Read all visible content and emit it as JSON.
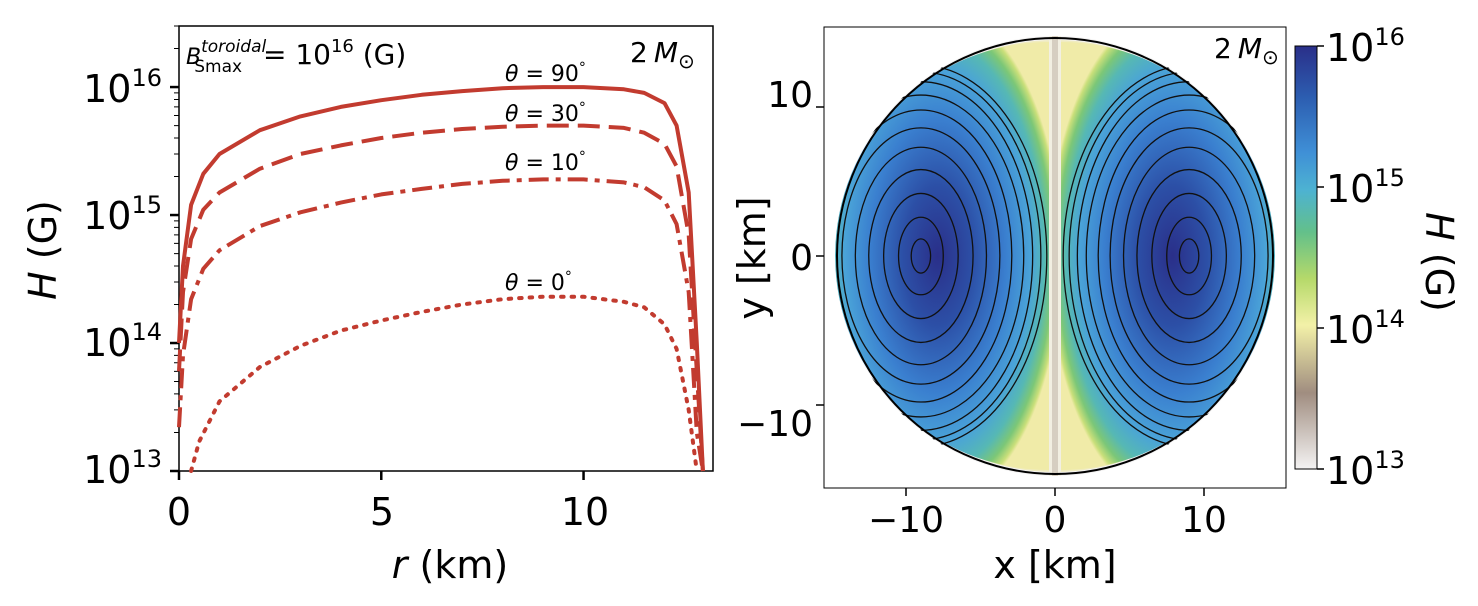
{
  "chart_data": [
    {
      "type": "line",
      "panel": "left",
      "xlabel": "r (km)",
      "xlabel_var": "r",
      "xlabel_unit": "(km)",
      "ylabel": "H (G)",
      "ylabel_var": "H",
      "ylabel_unit": "(G)",
      "xlim": [
        0,
        13.2
      ],
      "ylim": [
        10000000000000.0,
        3e+16
      ],
      "yscale": "log",
      "x_ticks": [
        "0",
        "5",
        "10"
      ],
      "x_tick_values": [
        0,
        5,
        10
      ],
      "y_ticks": [
        {
          "value": 1e+16,
          "base": "10",
          "exp": "16"
        },
        {
          "value": 1000000000000000.0,
          "base": "10",
          "exp": "15"
        },
        {
          "value": 100000000000000.0,
          "base": "10",
          "exp": "14"
        },
        {
          "value": 10000000000000.0,
          "base": "10",
          "exp": "13"
        }
      ],
      "annotation_bfield": {
        "B": "B",
        "sup": "toroidal",
        "sub": "Smax",
        "eq": " = 10",
        "exp": "16",
        "unit": " (G)"
      },
      "annotation_mass": {
        "prefix": "2",
        "M": "M",
        "sym": "⊙"
      },
      "color": "#c23b2f",
      "series": [
        {
          "name": "θ = 90°",
          "label_theta": "θ",
          "label_eq": " = 90",
          "label_deg": "°",
          "style": "solid",
          "x": [
            0,
            0.1,
            0.3,
            0.6,
            1,
            2,
            3,
            4,
            5,
            6,
            7,
            8,
            9,
            10,
            11,
            11.5,
            12,
            12.3,
            12.6,
            12.8,
            12.95
          ],
          "y": [
            100000000000000.0,
            400000000000000.0,
            1200000000000000.0,
            2100000000000000.0,
            3000000000000000.0,
            4600000000000000.0,
            5900000000000000.0,
            7000000000000000.0,
            7900000000000000.0,
            8700000000000000.0,
            9300000000000000.0,
            9800000000000000.0,
            1e+16,
            1e+16,
            9600000000000000.0,
            9000000000000000.0,
            7500000000000000.0,
            5000000000000000.0,
            1500000000000000.0,
            100000000000000.0,
            10000000000000.0
          ]
        },
        {
          "name": "θ = 30°",
          "label_theta": "θ",
          "label_eq": " = 30",
          "label_deg": "°",
          "style": "dashed",
          "x": [
            0,
            0.1,
            0.3,
            0.6,
            1,
            2,
            3,
            4,
            5,
            6,
            7,
            8,
            9,
            10,
            11,
            11.5,
            12,
            12.3,
            12.6,
            12.8,
            12.95
          ],
          "y": [
            60000000000000.0,
            250000000000000.0,
            650000000000000.0,
            1100000000000000.0,
            1500000000000000.0,
            2300000000000000.0,
            3000000000000000.0,
            3500000000000000.0,
            4000000000000000.0,
            4400000000000000.0,
            4700000000000000.0,
            4900000000000000.0,
            5000000000000000.0,
            5000000000000000.0,
            4800000000000000.0,
            4400000000000000.0,
            3600000000000000.0,
            2400000000000000.0,
            700000000000000.0,
            60000000000000.0,
            10000000000000.0
          ]
        },
        {
          "name": "θ = 10°",
          "label_theta": "θ",
          "label_eq": " = 10",
          "label_deg": "°",
          "style": "dashdot",
          "x": [
            0,
            0.1,
            0.3,
            0.6,
            1,
            2,
            3,
            4,
            5,
            6,
            7,
            8,
            9,
            10,
            11,
            11.5,
            12,
            12.3,
            12.6,
            12.8,
            12.95
          ],
          "y": [
            22000000000000.0,
            80000000000000.0,
            220000000000000.0,
            380000000000000.0,
            530000000000000.0,
            820000000000000.0,
            1050000000000000.0,
            1250000000000000.0,
            1450000000000000.0,
            1600000000000000.0,
            1750000000000000.0,
            1850000000000000.0,
            1900000000000000.0,
            1900000000000000.0,
            1800000000000000.0,
            1650000000000000.0,
            1300000000000000.0,
            850000000000000.0,
            250000000000000.0,
            20000000000000.0,
            10000000000000.0
          ]
        },
        {
          "name": "θ = 0°",
          "label_theta": "θ",
          "label_eq": " = 0",
          "label_deg": "°",
          "style": "dotted",
          "x": [
            0.3,
            0.5,
            1,
            2,
            3,
            4,
            5,
            6,
            7,
            8,
            9,
            10,
            11,
            11.5,
            12,
            12.3,
            12.6,
            12.8
          ],
          "y": [
            10000000000000.0,
            17000000000000.0,
            35000000000000.0,
            65000000000000.0,
            95000000000000.0,
            125000000000000.0,
            150000000000000.0,
            175000000000000.0,
            200000000000000.0,
            220000000000000.0,
            230000000000000.0,
            230000000000000.0,
            210000000000000.0,
            190000000000000.0,
            140000000000000.0,
            90000000000000.0,
            30000000000000.0,
            10000000000000.0
          ]
        }
      ]
    },
    {
      "type": "heatmap",
      "panel": "right",
      "xlabel": "x [km]",
      "ylabel": "y [km]",
      "xlim": [
        -14,
        14
      ],
      "ylim": [
        -14,
        14
      ],
      "x_ticks": [
        "−10",
        "0",
        "10"
      ],
      "x_tick_values": [
        -10,
        0,
        10
      ],
      "y_ticks": [
        "10",
        "0",
        "−10"
      ],
      "y_tick_values": [
        10,
        0,
        -10
      ],
      "star_radius_km": 13.2,
      "field_max_centers_km": [
        [
          -9,
          0
        ],
        [
          9,
          0
        ]
      ],
      "annotation_mass": {
        "prefix": "2",
        "M": "M",
        "sym": "⊙"
      },
      "colorbar": {
        "label": "H (G)",
        "label_var": "H",
        "label_unit": "(G)",
        "scale": "log",
        "range": [
          10000000000000.0,
          1e+16
        ],
        "ticks": [
          {
            "value": 1e+16,
            "base": "10",
            "exp": "16"
          },
          {
            "value": 1000000000000000.0,
            "base": "10",
            "exp": "15"
          },
          {
            "value": 100000000000000.0,
            "base": "10",
            "exp": "14"
          },
          {
            "value": 10000000000000.0,
            "base": "10",
            "exp": "13"
          }
        ],
        "colormap": [
          "#2a2f89",
          "#2c5db0",
          "#3f8fd6",
          "#4db2d2",
          "#63c08a",
          "#b5d96a",
          "#f3f1a8",
          "#a08d80",
          "#f4f3f3"
        ]
      }
    }
  ]
}
